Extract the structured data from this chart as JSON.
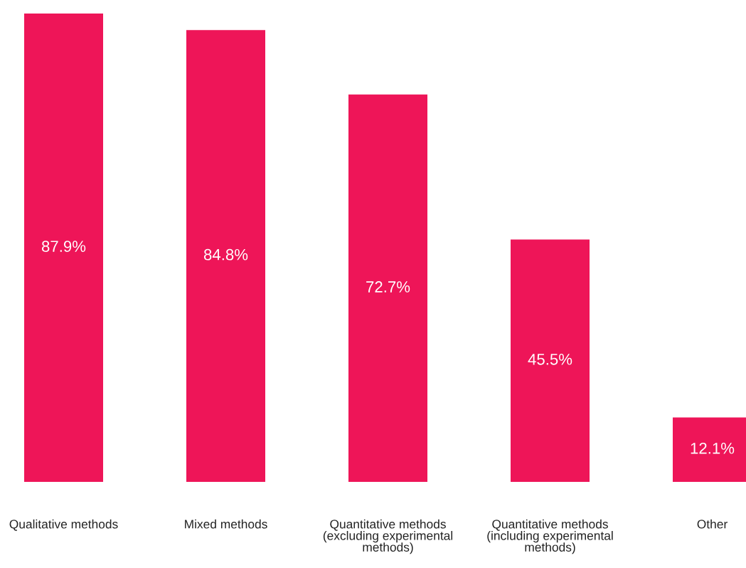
{
  "chart_data": {
    "type": "bar",
    "categories": [
      "Qualitative methods",
      "Mixed methods",
      "Quantitative methods\n(excluding experimental\nmethods)",
      "Quantitative methods\n(including experimental\nmethods)",
      "Other"
    ],
    "values": [
      87.9,
      84.8,
      72.7,
      45.5,
      12.1
    ],
    "color": "#ee1558",
    "data_labels": true,
    "value_labels": [
      "87.9%",
      "84.8%",
      "72.7%",
      "45.5%",
      "12.1%"
    ],
    "grid": false,
    "legend": false
  }
}
